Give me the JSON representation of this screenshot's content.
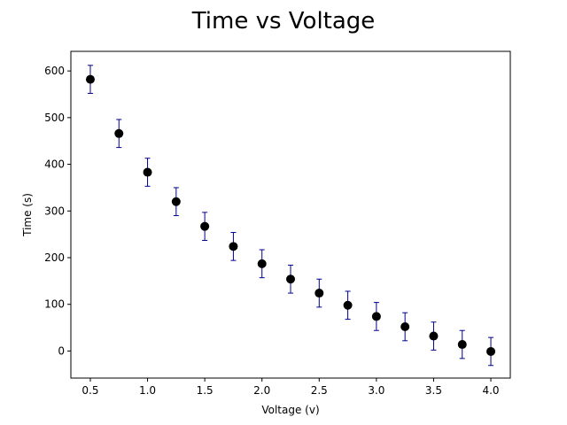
{
  "chart_data": {
    "type": "scatter",
    "title": "Time vs Voltage",
    "xlabel": "Voltage (v)",
    "ylabel": "Time (s)",
    "xlim": [
      0.33,
      4.17
    ],
    "ylim": [
      -58,
      642
    ],
    "grid": false,
    "marker_color": "#000000",
    "errorbar_color": "#00008b",
    "x_ticks": [
      0.5,
      1.0,
      1.5,
      2.0,
      2.5,
      3.0,
      3.5,
      4.0
    ],
    "x_tick_labels": [
      "0.5",
      "1.0",
      "1.5",
      "2.0",
      "2.5",
      "3.0",
      "3.5",
      "4.0"
    ],
    "y_ticks": [
      0,
      100,
      200,
      300,
      400,
      500,
      600
    ],
    "y_tick_labels": [
      "0",
      "100",
      "200",
      "300",
      "400",
      "500",
      "600"
    ],
    "points": [
      {
        "x": 0.5,
        "y": 582,
        "err": 30
      },
      {
        "x": 0.75,
        "y": 466,
        "err": 30
      },
      {
        "x": 1.0,
        "y": 383,
        "err": 30
      },
      {
        "x": 1.25,
        "y": 320,
        "err": 30
      },
      {
        "x": 1.5,
        "y": 267,
        "err": 30
      },
      {
        "x": 1.75,
        "y": 224,
        "err": 30
      },
      {
        "x": 2.0,
        "y": 187,
        "err": 30
      },
      {
        "x": 2.25,
        "y": 154,
        "err": 30
      },
      {
        "x": 2.5,
        "y": 124,
        "err": 30
      },
      {
        "x": 2.75,
        "y": 98,
        "err": 30
      },
      {
        "x": 3.0,
        "y": 74,
        "err": 30
      },
      {
        "x": 3.25,
        "y": 52,
        "err": 30
      },
      {
        "x": 3.5,
        "y": 32,
        "err": 30
      },
      {
        "x": 3.75,
        "y": 14,
        "err": 30
      },
      {
        "x": 4.0,
        "y": -1,
        "err": 30
      }
    ]
  }
}
